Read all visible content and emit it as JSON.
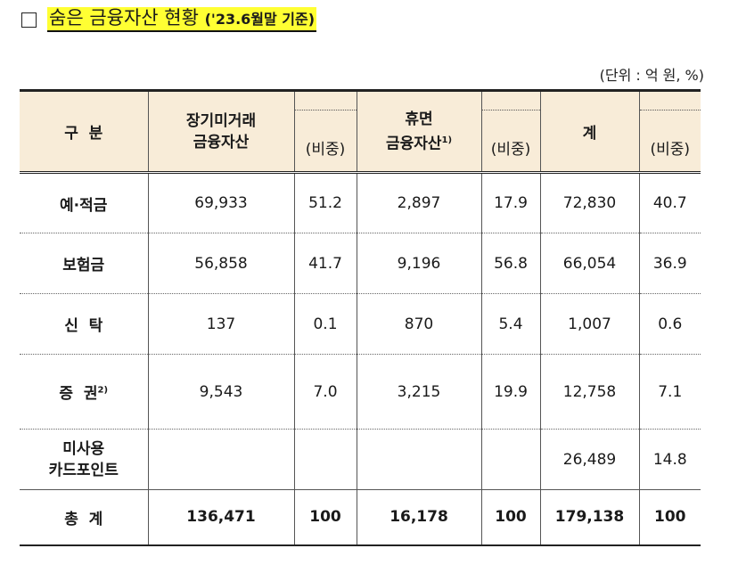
{
  "title": {
    "main": "숨은 금융자산 현황",
    "suffix": "('23.6월말 기준)"
  },
  "unit": "(단위 : 억 원, %)",
  "header": {
    "category": "구  분",
    "long_term_line1": "장기미거래",
    "long_term_line2": "금융자산",
    "ratio": "(비중)",
    "dormant_line1": "휴면",
    "dormant_line2": "금융자산",
    "dormant_note": "1)",
    "total": "계"
  },
  "rows": [
    {
      "name": "예·적금",
      "note": "",
      "long_term": "69,933",
      "lt_ratio": "51.2",
      "dormant": "2,897",
      "dm_ratio": "17.9",
      "total": "72,830",
      "t_ratio": "40.7"
    },
    {
      "name": "보험금",
      "note": "",
      "long_term": "56,858",
      "lt_ratio": "41.7",
      "dormant": "9,196",
      "dm_ratio": "56.8",
      "total": "66,054",
      "t_ratio": "36.9"
    },
    {
      "name": "신  탁",
      "note": "",
      "long_term": "137",
      "lt_ratio": "0.1",
      "dormant": "870",
      "dm_ratio": "5.4",
      "total": "1,007",
      "t_ratio": "0.6"
    },
    {
      "name": "증  권",
      "note": "2)",
      "long_term": "9,543",
      "lt_ratio": "7.0",
      "dormant": "3,215",
      "dm_ratio": "19.9",
      "total": "12,758",
      "t_ratio": "7.1"
    },
    {
      "name_line1": "미사용",
      "name_line2": "카드포인트",
      "long_term": "",
      "lt_ratio": "",
      "dormant": "",
      "dm_ratio": "",
      "total": "26,489",
      "t_ratio": "14.8"
    }
  ],
  "grand_total": {
    "name": "총  계",
    "long_term": "136,471",
    "lt_ratio": "100",
    "dormant": "16,178",
    "dm_ratio": "100",
    "total": "179,138",
    "t_ratio": "100"
  }
}
